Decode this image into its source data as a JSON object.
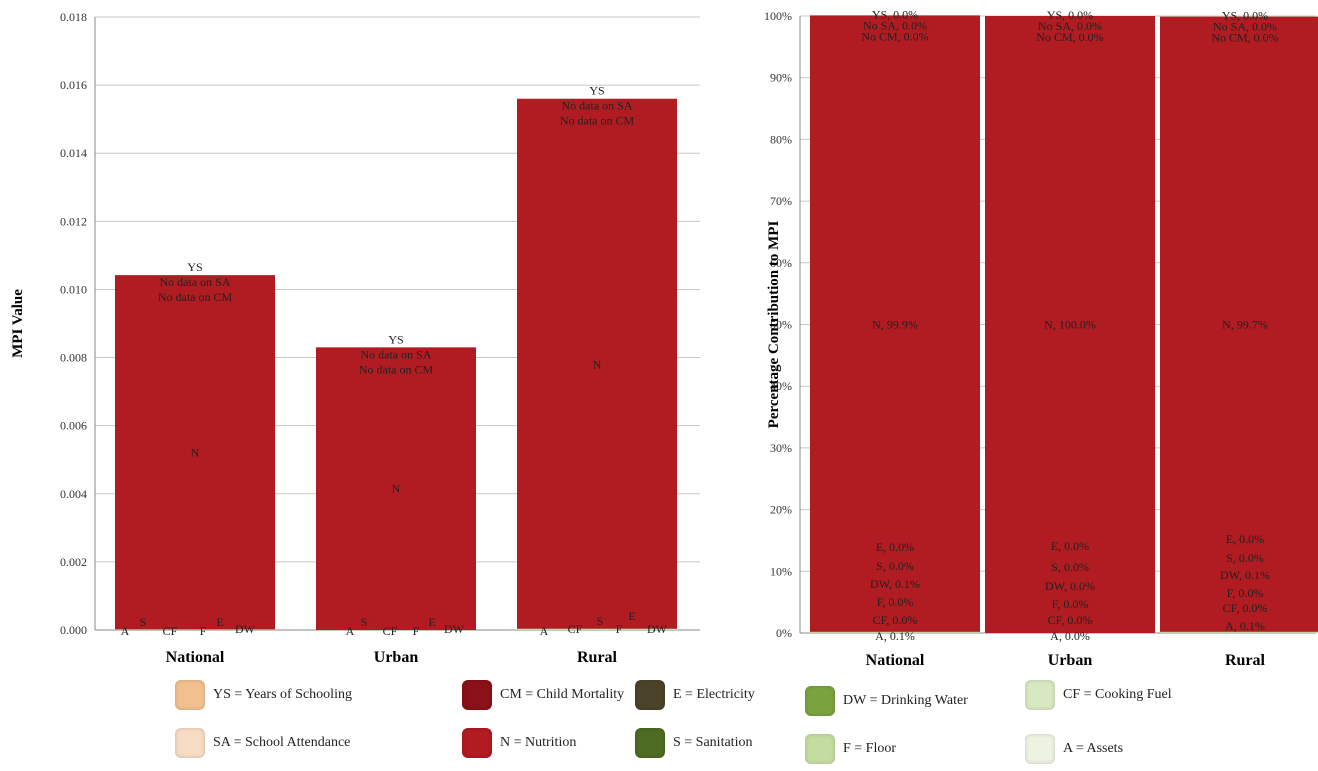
{
  "colors": {
    "YS": "#f2c08e",
    "CM": "#8a1117",
    "E": "#4a4329",
    "DW": "#7aa33e",
    "CF": "#d8e8c0",
    "SA": "#f7dcc4",
    "N": "#b01c22",
    "S": "#4d6b22",
    "F": "#c4dca0",
    "A": "#eef2e0"
  },
  "legend": [
    {
      "code": "YS",
      "text": "YS = Years of Schooling"
    },
    {
      "code": "CM",
      "text": "CM = Child Mortality"
    },
    {
      "code": "E",
      "text": "E = Electricity"
    },
    {
      "code": "DW",
      "text": "DW = Drinking Water"
    },
    {
      "code": "CF",
      "text": "CF = Cooking Fuel"
    },
    {
      "code": "SA",
      "text": "SA = School Attendance"
    },
    {
      "code": "N",
      "text": "N = Nutrition"
    },
    {
      "code": "S",
      "text": "S = Sanitation"
    },
    {
      "code": "F",
      "text": "F = Floor"
    },
    {
      "code": "A",
      "text": "A = Assets"
    }
  ],
  "chart_data": [
    {
      "type": "bar",
      "stacked": true,
      "title": "",
      "xlabel": "",
      "ylabel": "MPI Value",
      "categories": [
        "National",
        "Urban",
        "Rural"
      ],
      "ylim": [
        0,
        0.018
      ],
      "yticks": [
        "0.000",
        "0.002",
        "0.004",
        "0.006",
        "0.008",
        "0.010",
        "0.012",
        "0.014",
        "0.016",
        "0.018"
      ],
      "series": [
        {
          "code": "A",
          "values": [
            1e-05,
            0.0,
            2e-05
          ]
        },
        {
          "code": "CF",
          "values": [
            0.0,
            0.0,
            0.0
          ]
        },
        {
          "code": "F",
          "values": [
            0.0,
            0.0,
            0.0
          ]
        },
        {
          "code": "DW",
          "values": [
            1e-05,
            0.0,
            2e-05
          ]
        },
        {
          "code": "S",
          "values": [
            0.0,
            0.0,
            0.0
          ]
        },
        {
          "code": "E",
          "values": [
            0.0,
            0.0,
            0.0
          ]
        },
        {
          "code": "N",
          "values": [
            0.0104,
            0.0083,
            0.01556
          ]
        },
        {
          "code": "YS",
          "values": [
            0.0,
            0.0,
            0.0
          ]
        }
      ],
      "totals": [
        0.01042,
        0.0083,
        0.0156
      ],
      "bottom_labels": [
        [
          "A",
          "S",
          "CF",
          "F",
          "E",
          "DW"
        ],
        [
          "A",
          "S",
          "CF",
          "F",
          "E",
          "DW"
        ],
        [
          "A",
          "CF",
          "S",
          "F",
          "E",
          "DW"
        ]
      ],
      "middle_labels": [
        "N",
        "N",
        "N"
      ],
      "top_labels": [
        [
          "YS",
          "No data on SA",
          "No data on CM"
        ],
        [
          "YS",
          "No data on SA",
          "No data on CM"
        ],
        [
          "YS",
          "No data on SA",
          "No data on CM"
        ]
      ]
    },
    {
      "type": "bar",
      "stacked": true,
      "percent": true,
      "title": "",
      "xlabel": "",
      "ylabel": "Percentage Contribution to MPI",
      "categories": [
        "National",
        "Urban",
        "Rural"
      ],
      "ylim": [
        0,
        100
      ],
      "yticks": [
        "0%",
        "10%",
        "20%",
        "30%",
        "40%",
        "50%",
        "60%",
        "70%",
        "80%",
        "90%",
        "100%"
      ],
      "series": [
        {
          "code": "A",
          "values": [
            0.1,
            0.0,
            0.1
          ]
        },
        {
          "code": "CF",
          "values": [
            0.0,
            0.0,
            0.0
          ]
        },
        {
          "code": "F",
          "values": [
            0.0,
            0.0,
            0.0
          ]
        },
        {
          "code": "DW",
          "values": [
            0.1,
            0.0,
            0.1
          ]
        },
        {
          "code": "S",
          "values": [
            0.0,
            0.0,
            0.0
          ]
        },
        {
          "code": "E",
          "values": [
            0.0,
            0.0,
            0.0
          ]
        },
        {
          "code": "N",
          "values": [
            99.9,
            100.0,
            99.7
          ]
        },
        {
          "code": "YS",
          "values": [
            0.0,
            0.0,
            0.0
          ]
        },
        {
          "code": "SA",
          "values": [
            0.0,
            0.0,
            0.0
          ]
        },
        {
          "code": "CM",
          "values": [
            0.0,
            0.0,
            0.0
          ]
        }
      ],
      "bottom_labels": [
        [
          "A, 0.1%",
          "CF, 0.0%",
          "F, 0.0%",
          "DW, 0.1%",
          "S, 0.0%",
          "E, 0.0%"
        ],
        [
          "A, 0.0%",
          "CF, 0.0%",
          "F, 0.0%",
          "DW, 0.0%",
          "S, 0.0%",
          "E, 0.0%"
        ],
        [
          "A, 0.1%",
          "CF, 0.0%",
          "F, 0.0%",
          "DW, 0.1%",
          "S, 0.0%",
          "E, 0.0%"
        ]
      ],
      "middle_labels": [
        "N, 99.9%",
        "N, 100.0%",
        "N, 99.7%"
      ],
      "top_labels": [
        [
          "YS, 0.0%",
          "No SA, 0.0%",
          "No CM, 0.0%"
        ],
        [
          "YS, 0.0%",
          "No SA, 0.0%",
          "No CM, 0.0%"
        ],
        [
          "YS, 0.0%",
          "No SA, 0.0%",
          "No CM, 0.0%"
        ]
      ]
    }
  ]
}
